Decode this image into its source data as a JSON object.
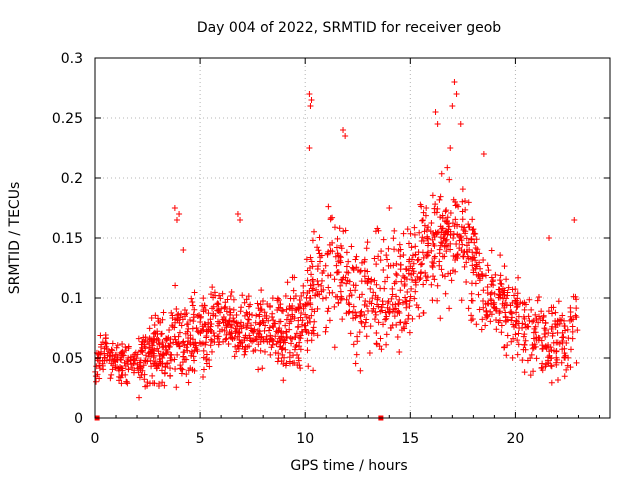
{
  "chart_data": {
    "type": "scatter",
    "title": "Day 004 of 2022, SRMTID for receiver geob",
    "xlabel": "GPS time / hours",
    "ylabel": "SRMTID / TECUs",
    "xlim": [
      0,
      24.5
    ],
    "ylim": [
      0,
      0.3
    ],
    "xticks": [
      0,
      5,
      10,
      15,
      20
    ],
    "yticks": [
      0,
      0.05,
      0.1,
      0.15,
      0.2,
      0.25,
      0.3
    ],
    "xtick_labels": [
      "0",
      "5",
      "10",
      "15",
      "20"
    ],
    "ytick_labels": [
      "0",
      "0.05",
      "0.1",
      "0.15",
      "0.2",
      "0.25",
      "0.3"
    ],
    "grid": true,
    "marker": "+",
    "color": "#ff0000",
    "series": [
      {
        "name": "SRMTID",
        "trend": {
          "x": [
            0,
            0.5,
            1,
            1.5,
            2,
            2.5,
            3,
            3.5,
            4,
            4.5,
            5,
            5.5,
            6,
            6.5,
            7,
            7.5,
            8,
            8.5,
            9,
            9.5,
            10,
            10.5,
            11,
            11.5,
            12,
            12.5,
            13,
            13.5,
            14,
            14.5,
            15,
            15.5,
            16,
            16.5,
            17,
            17.5,
            18,
            18.5,
            19,
            19.5,
            20,
            20.5,
            21,
            21.5,
            22,
            22.5,
            23
          ],
          "y": [
            0.045,
            0.055,
            0.05,
            0.045,
            0.045,
            0.05,
            0.055,
            0.06,
            0.07,
            0.065,
            0.07,
            0.075,
            0.08,
            0.08,
            0.075,
            0.075,
            0.075,
            0.075,
            0.07,
            0.075,
            0.09,
            0.1,
            0.12,
            0.125,
            0.11,
            0.095,
            0.1,
            0.1,
            0.1,
            0.105,
            0.115,
            0.125,
            0.14,
            0.15,
            0.155,
            0.15,
            0.13,
            0.11,
            0.1,
            0.09,
            0.085,
            0.075,
            0.065,
            0.065,
            0.07,
            0.065,
            0.09
          ]
        },
        "spread": {
          "x": [
            0,
            2,
            4,
            6,
            8,
            10,
            12,
            14,
            16,
            18,
            20,
            22,
            23
          ],
          "y": [
            0.015,
            0.018,
            0.03,
            0.025,
            0.025,
            0.04,
            0.04,
            0.04,
            0.045,
            0.04,
            0.03,
            0.025,
            0.03
          ]
        },
        "outliers": [
          {
            "x": 3.8,
            "y": 0.175
          },
          {
            "x": 3.9,
            "y": 0.165
          },
          {
            "x": 4.0,
            "y": 0.17
          },
          {
            "x": 4.2,
            "y": 0.14
          },
          {
            "x": 6.8,
            "y": 0.17
          },
          {
            "x": 6.9,
            "y": 0.165
          },
          {
            "x": 10.2,
            "y": 0.27
          },
          {
            "x": 10.25,
            "y": 0.26
          },
          {
            "x": 10.3,
            "y": 0.265
          },
          {
            "x": 10.2,
            "y": 0.225
          },
          {
            "x": 11.8,
            "y": 0.24
          },
          {
            "x": 11.9,
            "y": 0.235
          },
          {
            "x": 16.2,
            "y": 0.255
          },
          {
            "x": 16.3,
            "y": 0.245
          },
          {
            "x": 17.1,
            "y": 0.28
          },
          {
            "x": 17.2,
            "y": 0.27
          },
          {
            "x": 17.0,
            "y": 0.26
          },
          {
            "x": 17.4,
            "y": 0.245
          },
          {
            "x": 16.9,
            "y": 0.225
          },
          {
            "x": 18.5,
            "y": 0.22
          },
          {
            "x": 22.8,
            "y": 0.165
          },
          {
            "x": 14.0,
            "y": 0.175
          },
          {
            "x": 21.6,
            "y": 0.15
          }
        ],
        "n_points": 1700,
        "x_start": 0,
        "x_end": 22.95
      }
    ],
    "zero_markers": [
      {
        "x": 0.1,
        "y": 0
      },
      {
        "x": 13.6,
        "y": 0
      }
    ]
  }
}
